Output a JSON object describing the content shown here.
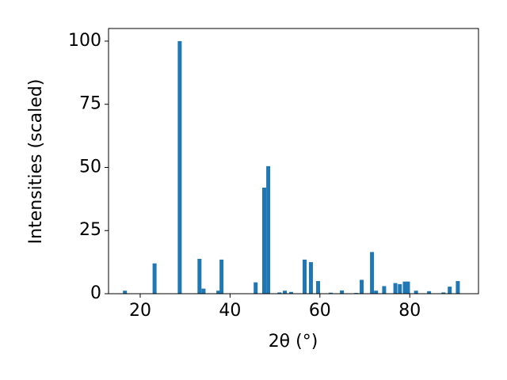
{
  "chart_data": {
    "type": "bar",
    "xlabel": "2θ (°)",
    "ylabel": "Intensities (scaled)",
    "x": [
      16.6,
      23.2,
      28.8,
      33.2,
      34.1,
      37.4,
      38.1,
      45.7,
      47.6,
      48.5,
      51.0,
      52.2,
      53.6,
      56.6,
      58.0,
      59.6,
      62.4,
      64.9,
      68.1,
      69.3,
      71.6,
      72.5,
      74.3,
      76.8,
      77.8,
      78.9,
      79.6,
      81.4,
      84.3,
      87.5,
      88.9,
      90.7
    ],
    "values": [
      1.2,
      12,
      100,
      13.8,
      2,
      1.2,
      13.5,
      4.5,
      42,
      50.5,
      0.5,
      1.2,
      0.7,
      13.5,
      12.5,
      5,
      0.4,
      1.3,
      0.3,
      5.5,
      16.5,
      1.2,
      3,
      4.2,
      3.8,
      4.8,
      4.8,
      1.2,
      1,
      0.5,
      2.8,
      5
    ],
    "color": "#1f77b4",
    "xlim": [
      12.95,
      95.3
    ],
    "ylim": [
      0,
      105
    ],
    "xticks": [
      20,
      40,
      60,
      80
    ],
    "yticks": [
      0,
      25,
      50,
      75,
      100
    ]
  }
}
